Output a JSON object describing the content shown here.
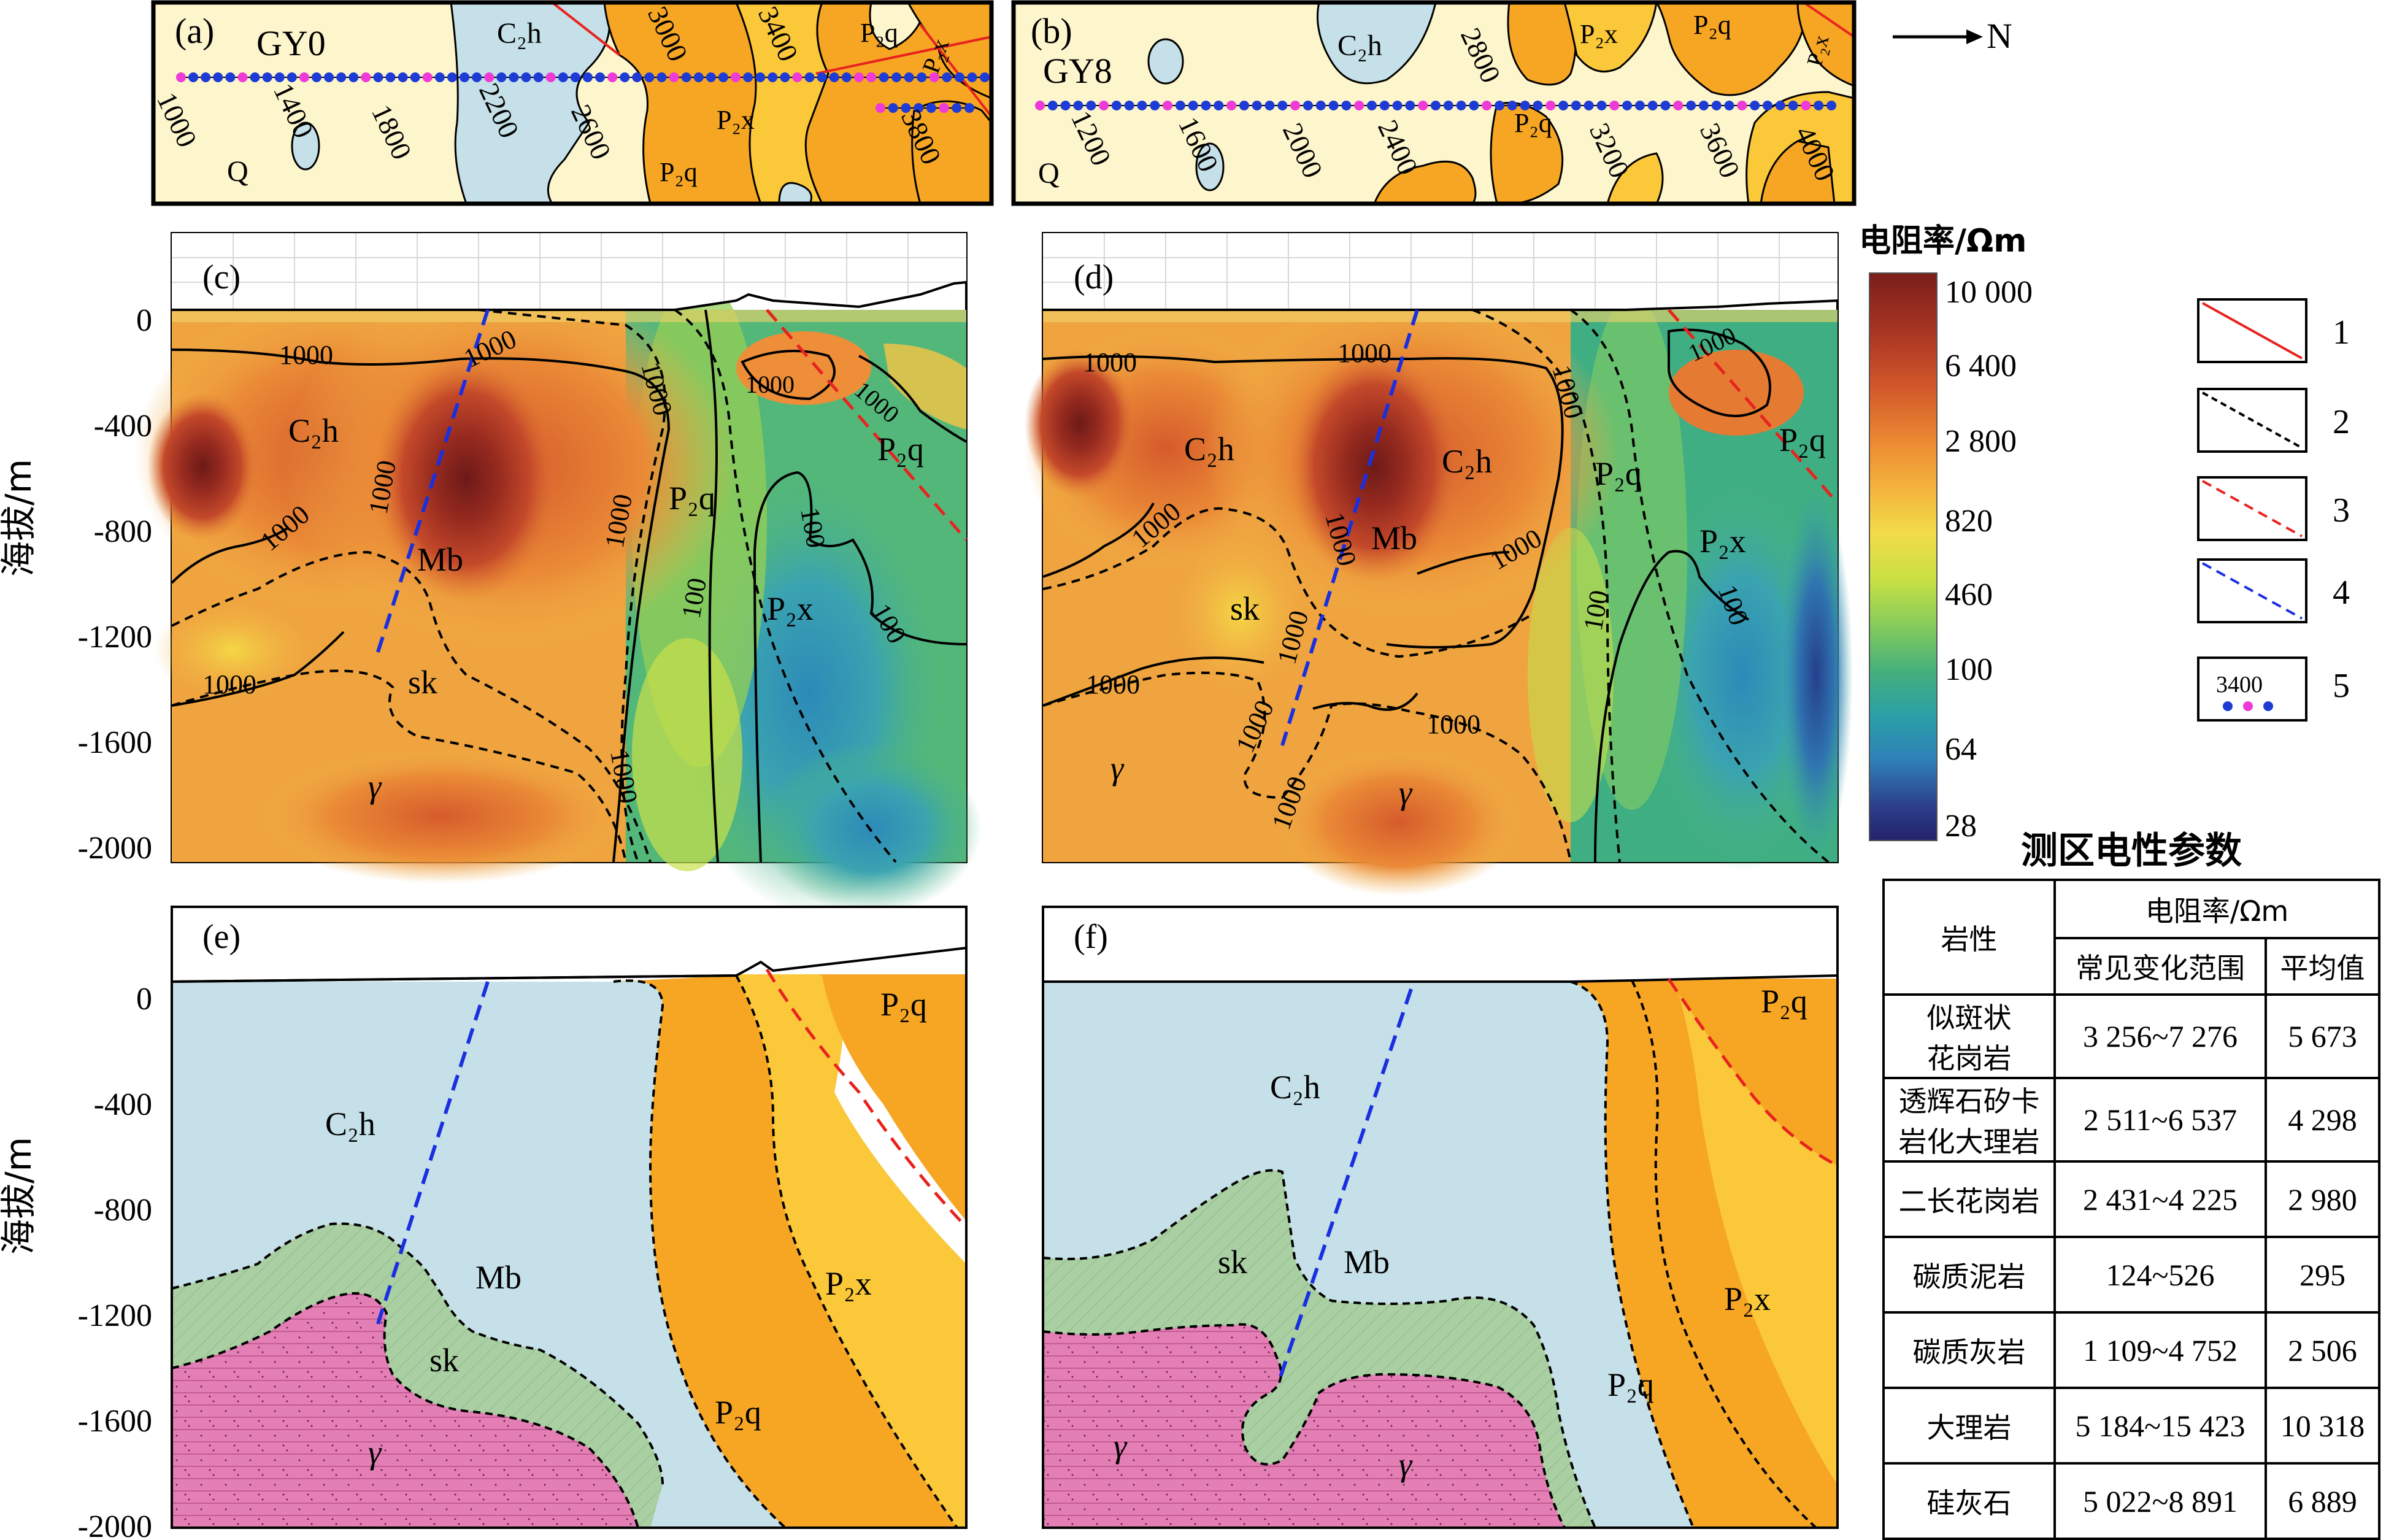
{
  "panels": {
    "a": {
      "label": "(a)",
      "profile": "GY0"
    },
    "b": {
      "label": "(b)",
      "profile": "GY8"
    },
    "c": {
      "label": "(c)"
    },
    "d": {
      "label": "(d)"
    },
    "e": {
      "label": "(e)"
    },
    "f": {
      "label": "(f)"
    }
  },
  "north_label": "N",
  "map_units": {
    "Q": "Q",
    "C2h": "C₂h",
    "P2q": "P₂q",
    "P2x": "P₂x",
    "Mb": "Mb",
    "sk": "sk",
    "gamma": "γ"
  },
  "stations_a": [
    "1000",
    "1400",
    "1800",
    "2200",
    "2600",
    "3000",
    "3400",
    "3800"
  ],
  "stations_b": [
    "1200",
    "1600",
    "2000",
    "2400",
    "2800",
    "3200",
    "3600",
    "4000"
  ],
  "contour_labels": {
    "c1000": "1000",
    "c100": "100"
  },
  "y_axis": {
    "title": "海拔/m",
    "ticks": [
      "0",
      "-400",
      "-800",
      "-1200",
      "-1600",
      "-2000"
    ]
  },
  "colorbar": {
    "title": "电阻率/Ωm",
    "ticks": [
      "10 000",
      "6 400",
      "2 800",
      "820",
      "460",
      "100",
      "64",
      "28"
    ],
    "colors": [
      "#7a1e1a",
      "#a63422",
      "#d2572a",
      "#ec8b33",
      "#f4b43c",
      "#f2dc4a",
      "#c9e044",
      "#86cc5c",
      "#46b07a",
      "#2aa0a8",
      "#2f7fb8",
      "#2c3e8a",
      "#23226a"
    ]
  },
  "legend": {
    "items": [
      {
        "num": "1",
        "style": "solid-red"
      },
      {
        "num": "2",
        "style": "dashed-black"
      },
      {
        "num": "3",
        "style": "dashed-red"
      },
      {
        "num": "4",
        "style": "dashed-blue"
      },
      {
        "num": "5",
        "style": "stations",
        "sample": "3400"
      }
    ]
  },
  "colors": {
    "Q": "#fdf5cc",
    "C2h": "#c5e0e8",
    "P2q": "#f7a623",
    "P2x": "#fbc83a",
    "sk": "#a9cfa3",
    "gamma": "#e37fb4",
    "station_blue": "#1e3bd6",
    "station_pink": "#ee3ad6",
    "fault_red": "#e8231f",
    "fault_blue": "#1a2fe0"
  },
  "table": {
    "title": "测区电性参数",
    "header_lithology": "岩性",
    "header_resistivity": "电阻率/Ωm",
    "header_range": "常见变化范围",
    "header_mean": "平均值",
    "rows": [
      {
        "name_line1": "似斑状",
        "name_line2": "花岗岩",
        "range": "3 256~7 276",
        "mean": "5 673"
      },
      {
        "name_line1": "透辉石矽卡",
        "name_line2": "岩化大理岩",
        "range": "2 511~6 537",
        "mean": "4 298"
      },
      {
        "name_line1": "二长花岗岩",
        "name_line2": "",
        "range": "2 431~4 225",
        "mean": "2 980"
      },
      {
        "name_line1": "碳质泥岩",
        "name_line2": "",
        "range": "124~526",
        "mean": "295"
      },
      {
        "name_line1": "碳质灰岩",
        "name_line2": "",
        "range": "1 109~4 752",
        "mean": "2 506"
      },
      {
        "name_line1": "大理岩",
        "name_line2": "",
        "range": "5 184~15 423",
        "mean": "10 318"
      },
      {
        "name_line1": "硅灰石",
        "name_line2": "",
        "range": "5 022~8 891",
        "mean": "6 889"
      }
    ]
  }
}
